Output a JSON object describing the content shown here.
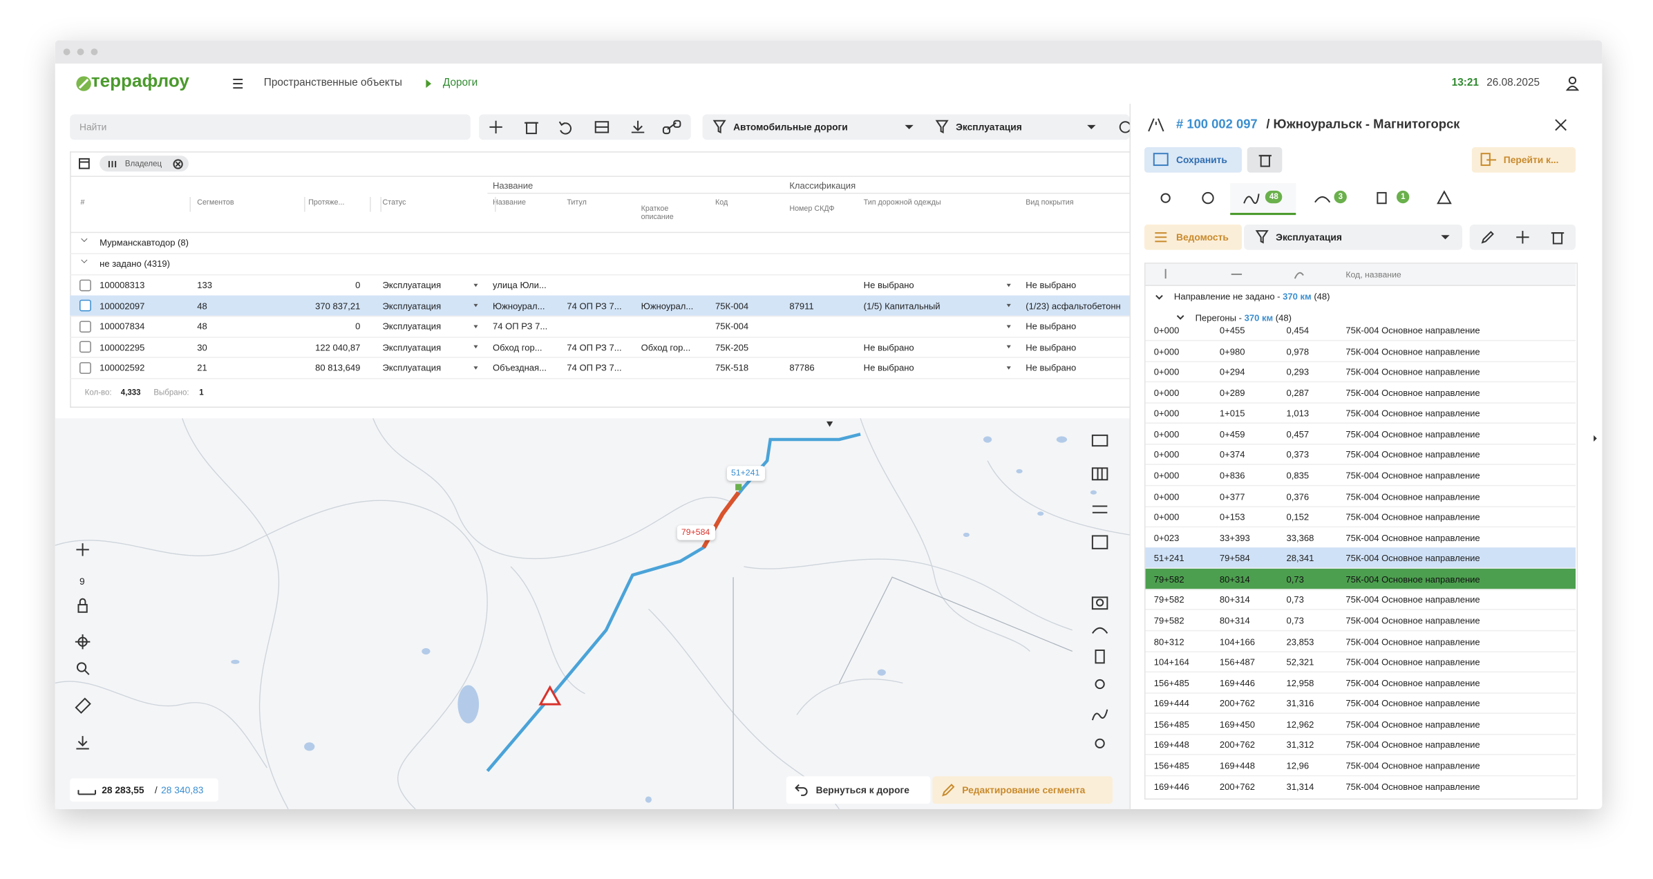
{
  "header": {
    "logo": "террафлоу",
    "breadcrumb": [
      "Пространственные объекты",
      "Дороги"
    ],
    "time": "13:21",
    "date": "26.08.2025"
  },
  "toolbar": {
    "search_placeholder": "Найти",
    "filter_type": "Автомобильные дороги",
    "filter_status": "Эксплуатация"
  },
  "table": {
    "chip": "Владелец",
    "group_headers": [
      "Название",
      "Классификация"
    ],
    "columns": [
      "#",
      "Сегментов",
      "Протяже...",
      "Статус",
      "Название",
      "Титул",
      "Краткое описание",
      "Код",
      "Номер СКДФ",
      "Тип дорожной одежды",
      "Вид покрытия"
    ],
    "groups": [
      "Мурманскавтодор (8)",
      "не задано (4319)"
    ],
    "rows": [
      {
        "id": "100008313",
        "segments": "133",
        "length": "0",
        "status": "Эксплуатация",
        "name": "улица Юли...",
        "pavement": "Не выбрано",
        "cover": "Не выбрано"
      },
      {
        "id": "100002097",
        "segments": "48",
        "length": "370 837,21",
        "status": "Эксплуатация",
        "name": "Южноурал...",
        "titul": "74 ОП РЗ 7...",
        "short": "Южноурал...",
        "code": "75К-004",
        "skdf": "87911",
        "pavement": "(1/5) Капитальный",
        "cover": "(1/23) асфальтобетонн"
      },
      {
        "id": "100007834",
        "segments": "48",
        "length": "0",
        "status": "Эксплуатация",
        "name": "74 ОП РЗ 7...",
        "code": "75К-004",
        "cover": "Не выбрано"
      },
      {
        "id": "100002295",
        "segments": "30",
        "length": "122 040,87",
        "status": "Эксплуатация",
        "name": "Обход гор...",
        "titul": "74 ОП РЗ 7...",
        "short": "Обход гор...",
        "code": "75К-205",
        "pavement": "Не выбрано",
        "cover": "Не выбрано"
      },
      {
        "id": "100002592",
        "segments": "21",
        "length": "80 813,649",
        "status": "Эксплуатация",
        "name": "Объездная...",
        "titul": "74 ОП РЗ 7...",
        "code": "75К-518",
        "skdf": "87786",
        "pavement": "Не выбрано",
        "cover": "Не выбрано"
      }
    ],
    "footer": {
      "count_label": "Кол-во:",
      "count": "4,333",
      "selected_label": "Выбрано:",
      "selected": "1"
    }
  },
  "map": {
    "label_start": "51+241",
    "label_end": "79+584",
    "zoom": "9",
    "coord_a": "28 283,55",
    "coord_sep": "/",
    "coord_b": "28 340,83",
    "back_button": "Вернуться к дороге",
    "edit_button": "Редактирование сегмента"
  },
  "panel": {
    "id": "# 100 002 097",
    "title": "/ Южноуральск - Магнитогорск",
    "save": "Сохранить",
    "goto": "Перейти к...",
    "badges": [
      "48",
      "3",
      "1"
    ],
    "view": "Ведомость",
    "filter": "Эксплуатация",
    "column": "Код, название",
    "group1": {
      "label": "Направление не задано - ",
      "km": "370 км",
      "count": "(48)"
    },
    "group2": {
      "label": "Перегоны - ",
      "km": "370 км",
      "count": "(48)"
    },
    "rows": [
      [
        "0+000",
        "0+455",
        "0,454",
        "75К-004 Основное направление"
      ],
      [
        "0+000",
        "0+980",
        "0,978",
        "75К-004 Основное направление"
      ],
      [
        "0+000",
        "0+294",
        "0,293",
        "75К-004 Основное направление"
      ],
      [
        "0+000",
        "0+289",
        "0,287",
        "75К-004 Основное направление"
      ],
      [
        "0+000",
        "1+015",
        "1,013",
        "75К-004 Основное направление"
      ],
      [
        "0+000",
        "0+459",
        "0,457",
        "75К-004 Основное направление"
      ],
      [
        "0+000",
        "0+374",
        "0,373",
        "75К-004 Основное направление"
      ],
      [
        "0+000",
        "0+836",
        "0,835",
        "75К-004 Основное направление"
      ],
      [
        "0+000",
        "0+377",
        "0,376",
        "75К-004 Основное направление"
      ],
      [
        "0+000",
        "0+153",
        "0,152",
        "75К-004 Основное направление"
      ],
      [
        "0+023",
        "33+393",
        "33,368",
        "75К-004 Основное направление"
      ],
      [
        "51+241",
        "79+584",
        "28,341",
        "75К-004 Основное направление"
      ],
      [
        "79+582",
        "80+314",
        "0,73",
        "75К-004 Основное направление"
      ],
      [
        "79+582",
        "80+314",
        "0,73",
        "75К-004 Основное направление"
      ],
      [
        "79+582",
        "80+314",
        "0,73",
        "75К-004 Основное направление"
      ],
      [
        "80+312",
        "104+166",
        "23,853",
        "75К-004 Основное направление"
      ],
      [
        "104+164",
        "156+487",
        "52,321",
        "75К-004 Основное направление"
      ],
      [
        "156+485",
        "169+446",
        "12,958",
        "75К-004 Основное направление"
      ],
      [
        "169+444",
        "200+762",
        "31,316",
        "75К-004 Основное направление"
      ],
      [
        "156+485",
        "169+450",
        "12,962",
        "75К-004 Основное направление"
      ],
      [
        "169+448",
        "200+762",
        "31,312",
        "75К-004 Основное направление"
      ],
      [
        "156+485",
        "169+448",
        "12,96",
        "75К-004 Основное направление"
      ],
      [
        "169+446",
        "200+762",
        "31,314",
        "75К-004 Основное направление"
      ]
    ]
  }
}
